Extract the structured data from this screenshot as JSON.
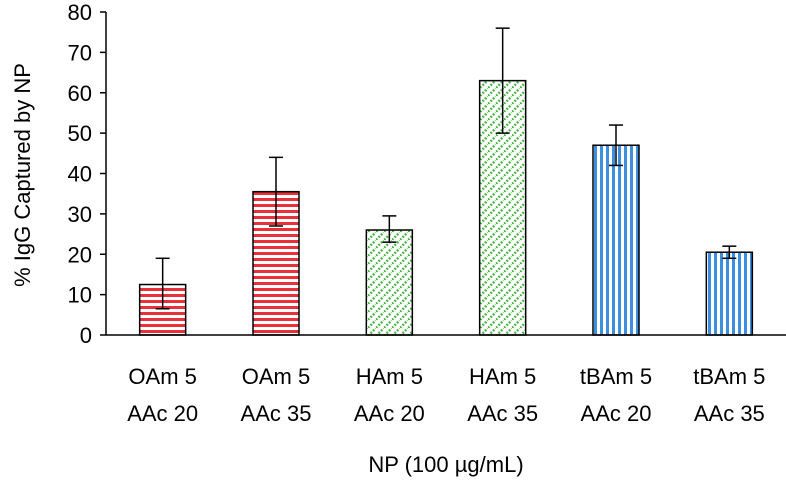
{
  "chart_data": {
    "type": "bar",
    "title": "",
    "xlabel": "NP (100 µg/mL)",
    "ylabel": "% IgG Captured by NP",
    "ylim": [
      0,
      80
    ],
    "yticks": [
      0,
      10,
      20,
      30,
      40,
      50,
      60,
      70,
      80
    ],
    "grid": false,
    "legend": "none",
    "categories": [
      [
        "OAm 5",
        "AAc 20"
      ],
      [
        "OAm 5",
        "AAc 35"
      ],
      [
        "HAm 5",
        "AAc 20"
      ],
      [
        "HAm 5",
        "AAc 35"
      ],
      [
        "tBAm 5",
        "AAc 20"
      ],
      [
        "tBAm 5",
        "AAc 35"
      ]
    ],
    "values": [
      12.5,
      35.5,
      26,
      63,
      47,
      20.5
    ],
    "error_low": [
      6.5,
      27,
      23,
      50,
      42,
      19
    ],
    "error_high": [
      19,
      44,
      29.5,
      76,
      52,
      22
    ],
    "fill_patterns": [
      "horizontal-lines",
      "horizontal-lines",
      "diagonal-dashes",
      "diagonal-dashes",
      "vertical-lines",
      "vertical-lines"
    ],
    "colors": [
      "#e8303a",
      "#e8303a",
      "#4fb84a",
      "#4fb84a",
      "#3b8ee0",
      "#3b8ee0"
    ]
  }
}
